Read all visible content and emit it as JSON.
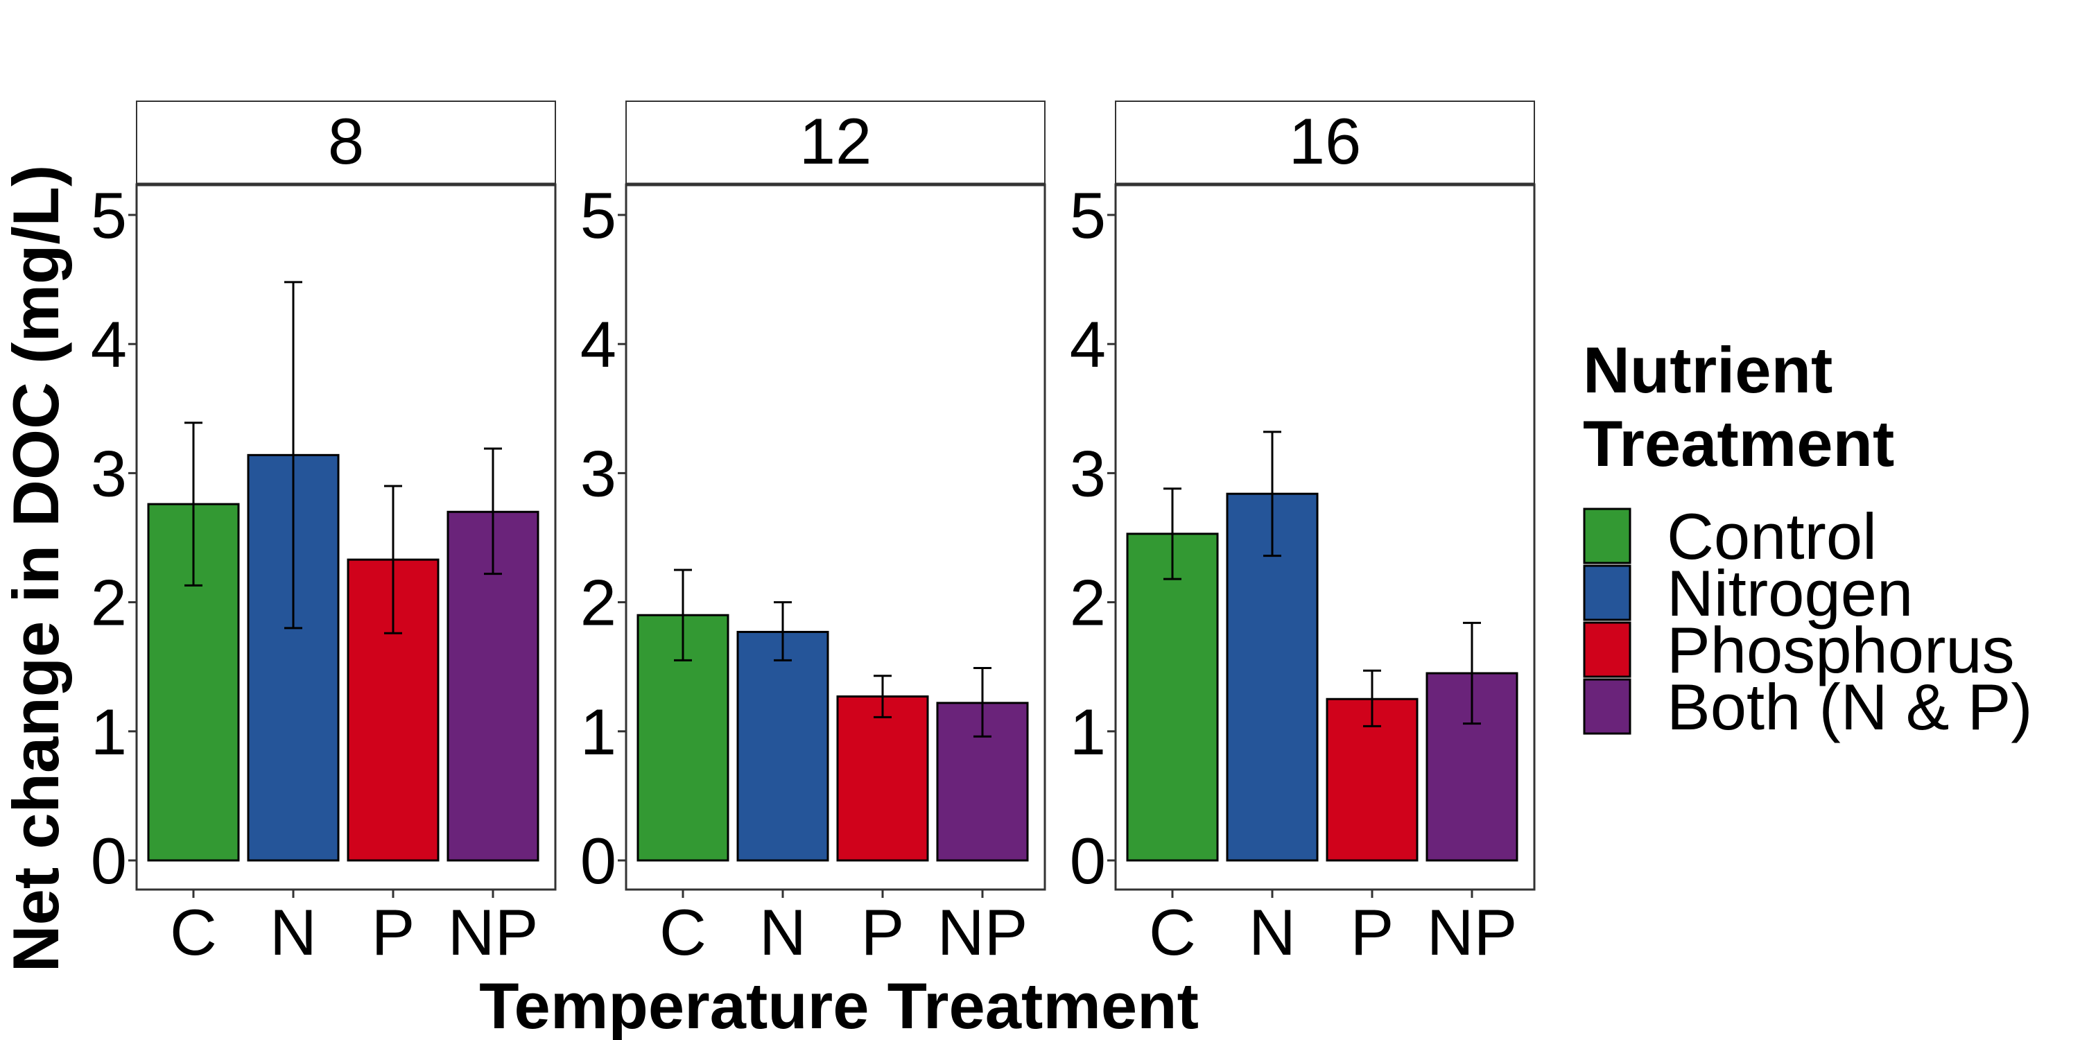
{
  "chart_data": {
    "type": "bar",
    "facet_label": "",
    "facets": [
      "8",
      "12",
      "16"
    ],
    "categories": [
      "C",
      "N",
      "P",
      "NP"
    ],
    "xlabel": "Temperature Treatment",
    "ylabel": "Net change in DOC (mg/L)",
    "ylim": [
      0,
      5.2
    ],
    "yticks": [
      0,
      1,
      2,
      3,
      4,
      5
    ],
    "grid": false,
    "legend": {
      "title": "Nutrient Treatment",
      "title_lines": [
        "Nutrient",
        "Treatment"
      ],
      "position": "right",
      "entries": [
        "Control",
        "Nitrogen",
        "Phosphorus",
        "Both (N & P)"
      ]
    },
    "colors": [
      "#339933",
      "#255599",
      "#d0021b",
      "#6a237a"
    ],
    "panels": [
      {
        "facet": "8",
        "values": [
          2.76,
          3.14,
          2.33,
          2.7
        ],
        "err_low": [
          2.13,
          1.8,
          1.76,
          2.22
        ],
        "err_high": [
          3.39,
          4.48,
          2.9,
          3.19
        ]
      },
      {
        "facet": "12",
        "values": [
          1.9,
          1.77,
          1.27,
          1.22
        ],
        "err_low": [
          1.55,
          1.55,
          1.11,
          0.96
        ],
        "err_high": [
          2.25,
          2.0,
          1.43,
          1.49
        ]
      },
      {
        "facet": "16",
        "values": [
          2.53,
          2.84,
          1.25,
          1.45
        ],
        "err_low": [
          2.18,
          2.36,
          1.04,
          1.06
        ],
        "err_high": [
          2.88,
          3.32,
          1.47,
          1.84
        ]
      }
    ]
  }
}
